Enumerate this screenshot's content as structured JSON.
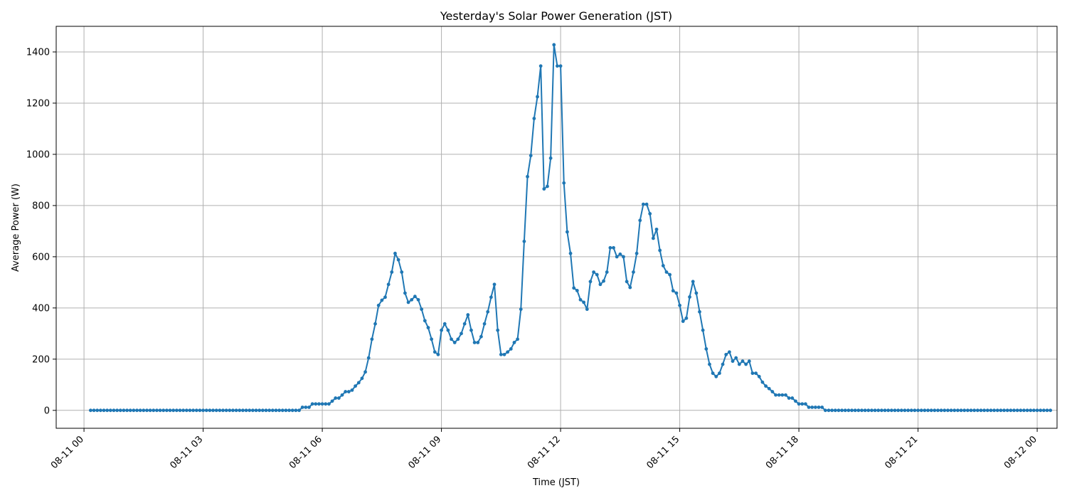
{
  "chart_data": {
    "type": "line",
    "title": "Yesterday's Solar Power Generation (JST)",
    "xlabel": "Time (JST)",
    "ylabel": "Average Power (W)",
    "grid": true,
    "ylim": [
      -70,
      1500
    ],
    "xlim_hours": [
      -0.7,
      24.5
    ],
    "x_tick_labels": [
      "08-11 00",
      "08-11 03",
      "08-11 06",
      "08-11 09",
      "08-11 12",
      "08-11 15",
      "08-11 18",
      "08-11 21",
      "08-12 00"
    ],
    "x_tick_hours": [
      0,
      3,
      6,
      9,
      12,
      15,
      18,
      21,
      24
    ],
    "y_ticks": [
      0,
      200,
      400,
      600,
      800,
      1000,
      1200,
      1400
    ],
    "interval_minutes": 5,
    "first_hour": 0.1667,
    "series": [
      {
        "color": "#1f77b4",
        "values": [
          0,
          0,
          0,
          0,
          0,
          0,
          0,
          0,
          0,
          0,
          0,
          0,
          0,
          0,
          0,
          0,
          0,
          0,
          0,
          0,
          0,
          0,
          0,
          0,
          0,
          0,
          0,
          0,
          0,
          0,
          0,
          0,
          0,
          0,
          0,
          0,
          0,
          0,
          0,
          0,
          0,
          0,
          0,
          0,
          0,
          0,
          0,
          0,
          0,
          0,
          0,
          0,
          0,
          0,
          0,
          0,
          0,
          0,
          0,
          0,
          0,
          0,
          0,
          0,
          12,
          12,
          12,
          25,
          25,
          25,
          25,
          25,
          25,
          36,
          48,
          48,
          60,
          73,
          73,
          79,
          95,
          108,
          125,
          150,
          205,
          278,
          338,
          410,
          430,
          442,
          492,
          540,
          613,
          588,
          540,
          458,
          422,
          432,
          445,
          432,
          395,
          350,
          323,
          278,
          228,
          218,
          313,
          338,
          313,
          278,
          265,
          278,
          300,
          338,
          373,
          313,
          265,
          265,
          288,
          338,
          385,
          442,
          492,
          313,
          218,
          218,
          228,
          240,
          265,
          278,
          395,
          660,
          913,
          995,
          1140,
          1225,
          1345,
          865,
          875,
          985,
          1428,
          1345,
          1345,
          888,
          697,
          613,
          478,
          468,
          432,
          422,
          395,
          503,
          540,
          530,
          492,
          505,
          540,
          635,
          635,
          600,
          610,
          600,
          503,
          480,
          540,
          613,
          742,
          805,
          805,
          768,
          672,
          707,
          625,
          565,
          540,
          530,
          467,
          458,
          410,
          348,
          360,
          443,
          503,
          458,
          385,
          313,
          240,
          180,
          145,
          132,
          145,
          180,
          218,
          228,
          192,
          205,
          180,
          192,
          180,
          192,
          145,
          145,
          132,
          110,
          95,
          85,
          73,
          60,
          60,
          60,
          60,
          48,
          48,
          36,
          25,
          25,
          25,
          12,
          12,
          12,
          12,
          12,
          0,
          0,
          0,
          0,
          0,
          0,
          0,
          0,
          0,
          0,
          0,
          0,
          0,
          0,
          0,
          0,
          0,
          0,
          0,
          0,
          0,
          0,
          0,
          0,
          0,
          0,
          0,
          0,
          0,
          0,
          0,
          0,
          0,
          0,
          0,
          0,
          0,
          0,
          0,
          0,
          0,
          0,
          0,
          0,
          0,
          0,
          0,
          0,
          0,
          0,
          0,
          0,
          0,
          0,
          0,
          0,
          0,
          0,
          0,
          0,
          0,
          0,
          0,
          0,
          0,
          0,
          0,
          0,
          0
        ]
      }
    ]
  }
}
